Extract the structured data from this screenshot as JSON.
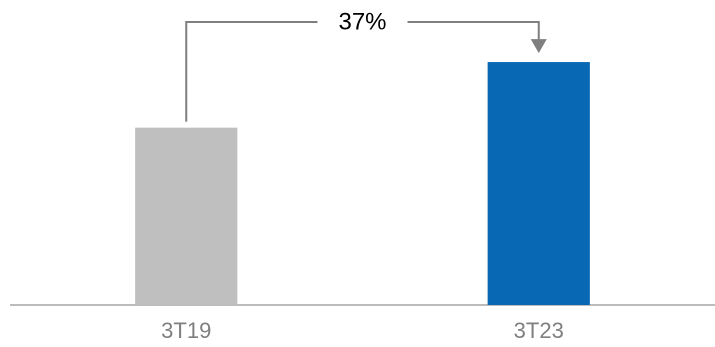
{
  "chart_data": {
    "type": "bar",
    "annotation": "37%",
    "categories": [
      "3T19",
      "3T23"
    ],
    "values": [
      100,
      137
    ],
    "colors": [
      "#bfbfbf",
      "#0868b4"
    ],
    "ylim": [
      0,
      172
    ]
  }
}
